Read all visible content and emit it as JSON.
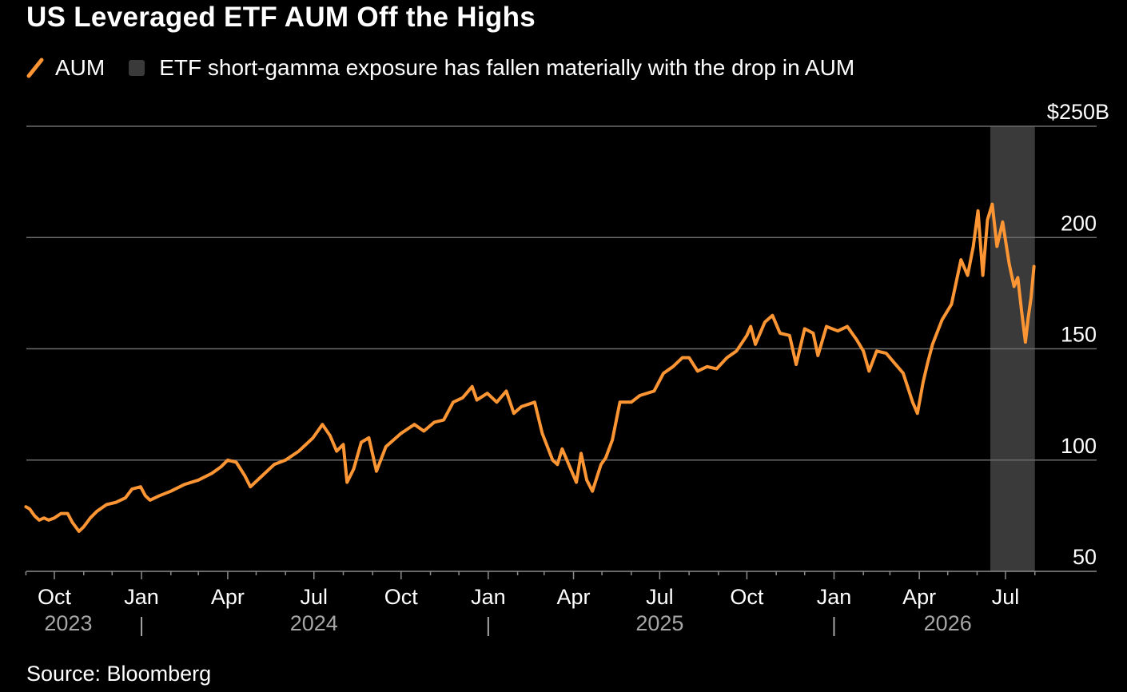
{
  "title": "US Leveraged ETF AUM Off the Highs",
  "source": "Source: Bloomberg",
  "colors": {
    "background": "#000000",
    "line": "#fc9533",
    "shade": "#3a3a3a",
    "grid": "#6b6b6b",
    "axis_text": "#ffffff",
    "year_text": "#a6a6a6"
  },
  "legend": [
    {
      "label": "AUM",
      "swatch": "line"
    },
    {
      "label": "ETF short-gamma exposure has fallen materially with the drop in AUM",
      "swatch": "box"
    }
  ],
  "chart_data": {
    "type": "line",
    "x_axis": {
      "month_ticks": [
        {
          "date": "2023-10-01",
          "label": "Oct"
        },
        {
          "date": "2024-01-01",
          "label": "Jan"
        },
        {
          "date": "2024-04-01",
          "label": "Apr"
        },
        {
          "date": "2024-07-01",
          "label": "Jul"
        },
        {
          "date": "2024-10-01",
          "label": "Oct"
        },
        {
          "date": "2025-01-01",
          "label": "Jan"
        },
        {
          "date": "2025-04-01",
          "label": "Apr"
        },
        {
          "date": "2025-07-01",
          "label": "Jul"
        },
        {
          "date": "2025-10-01",
          "label": "Oct"
        },
        {
          "date": "2026-01-01",
          "label": "Jan"
        },
        {
          "date": "2026-04-01",
          "label": "Apr"
        },
        {
          "date": "2026-07-01",
          "label": "Jul"
        }
      ],
      "year_labels": [
        {
          "date": "2023-09-01",
          "label": "2023"
        },
        {
          "date": "2024-07-01",
          "label": "2024"
        },
        {
          "date": "2025-07-01",
          "label": "2025"
        },
        {
          "date": "2026-05-01",
          "label": "2026"
        }
      ],
      "year_separators": [
        "2024-01-01",
        "2025-01-01",
        "2026-01-01"
      ],
      "range": [
        "2023-08-22",
        "2026-08-31"
      ]
    },
    "y_axis": {
      "ticks": [
        {
          "value": 50,
          "label": "50"
        },
        {
          "value": 100,
          "label": "100"
        },
        {
          "value": 150,
          "label": "150"
        },
        {
          "value": 200,
          "label": "200"
        },
        {
          "value": 250,
          "label": "$250B"
        }
      ],
      "range": [
        50,
        250
      ],
      "position": "right"
    },
    "shaded_region": {
      "start": "2026-06-15",
      "end": "2026-08-01"
    },
    "series": [
      {
        "name": "AUM",
        "points": [
          [
            "2023-09-01",
            79
          ],
          [
            "2023-09-05",
            78
          ],
          [
            "2023-09-10",
            75
          ],
          [
            "2023-09-15",
            73
          ],
          [
            "2023-09-20",
            74
          ],
          [
            "2023-09-25",
            73
          ],
          [
            "2023-10-01",
            74
          ],
          [
            "2023-10-08",
            76
          ],
          [
            "2023-10-15",
            76
          ],
          [
            "2023-10-20",
            72
          ],
          [
            "2023-10-27",
            68
          ],
          [
            "2023-11-01",
            70
          ],
          [
            "2023-11-08",
            74
          ],
          [
            "2023-11-15",
            77
          ],
          [
            "2023-11-25",
            80
          ],
          [
            "2023-12-05",
            81
          ],
          [
            "2023-12-15",
            83
          ],
          [
            "2023-12-22",
            87
          ],
          [
            "2023-12-31",
            88
          ],
          [
            "2024-01-05",
            84
          ],
          [
            "2024-01-10",
            82
          ],
          [
            "2024-01-20",
            84
          ],
          [
            "2024-02-01",
            86
          ],
          [
            "2024-02-15",
            89
          ],
          [
            "2024-03-01",
            91
          ],
          [
            "2024-03-15",
            94
          ],
          [
            "2024-03-25",
            97
          ],
          [
            "2024-04-01",
            100
          ],
          [
            "2024-04-10",
            99
          ],
          [
            "2024-04-19",
            93
          ],
          [
            "2024-04-25",
            88
          ],
          [
            "2024-05-05",
            92
          ],
          [
            "2024-05-20",
            98
          ],
          [
            "2024-06-01",
            100
          ],
          [
            "2024-06-15",
            104
          ],
          [
            "2024-06-30",
            110
          ],
          [
            "2024-07-10",
            116
          ],
          [
            "2024-07-18",
            111
          ],
          [
            "2024-07-25",
            104
          ],
          [
            "2024-08-01",
            107
          ],
          [
            "2024-08-05",
            90
          ],
          [
            "2024-08-12",
            96
          ],
          [
            "2024-08-20",
            108
          ],
          [
            "2024-08-28",
            110
          ],
          [
            "2024-09-05",
            95
          ],
          [
            "2024-09-15",
            106
          ],
          [
            "2024-10-01",
            112
          ],
          [
            "2024-10-15",
            116
          ],
          [
            "2024-10-25",
            113
          ],
          [
            "2024-11-05",
            117
          ],
          [
            "2024-11-15",
            118
          ],
          [
            "2024-11-25",
            126
          ],
          [
            "2024-12-05",
            128
          ],
          [
            "2024-12-15",
            133
          ],
          [
            "2024-12-20",
            127
          ],
          [
            "2024-12-31",
            130
          ],
          [
            "2025-01-10",
            126
          ],
          [
            "2025-01-20",
            131
          ],
          [
            "2025-01-28",
            121
          ],
          [
            "2025-02-05",
            124
          ],
          [
            "2025-02-19",
            126
          ],
          [
            "2025-02-27",
            112
          ],
          [
            "2025-03-10",
            100
          ],
          [
            "2025-03-15",
            98
          ],
          [
            "2025-03-20",
            105
          ],
          [
            "2025-03-27",
            98
          ],
          [
            "2025-04-04",
            90
          ],
          [
            "2025-04-09",
            103
          ],
          [
            "2025-04-15",
            91
          ],
          [
            "2025-04-21",
            86
          ],
          [
            "2025-04-30",
            98
          ],
          [
            "2025-05-05",
            101
          ],
          [
            "2025-05-12",
            109
          ],
          [
            "2025-05-20",
            126
          ],
          [
            "2025-06-01",
            126
          ],
          [
            "2025-06-10",
            129
          ],
          [
            "2025-06-25",
            131
          ],
          [
            "2025-07-05",
            139
          ],
          [
            "2025-07-15",
            142
          ],
          [
            "2025-07-25",
            146
          ],
          [
            "2025-08-01",
            146
          ],
          [
            "2025-08-10",
            140
          ],
          [
            "2025-08-20",
            142
          ],
          [
            "2025-08-30",
            141
          ],
          [
            "2025-09-10",
            146
          ],
          [
            "2025-09-20",
            149
          ],
          [
            "2025-10-01",
            156
          ],
          [
            "2025-10-05",
            160
          ],
          [
            "2025-10-10",
            152
          ],
          [
            "2025-10-20",
            162
          ],
          [
            "2025-10-28",
            165
          ],
          [
            "2025-11-05",
            157
          ],
          [
            "2025-11-15",
            156
          ],
          [
            "2025-11-22",
            143
          ],
          [
            "2025-12-01",
            159
          ],
          [
            "2025-12-10",
            157
          ],
          [
            "2025-12-15",
            147
          ],
          [
            "2025-12-24",
            160
          ],
          [
            "2026-01-05",
            158
          ],
          [
            "2026-01-15",
            160
          ],
          [
            "2026-01-25",
            154
          ],
          [
            "2026-02-01",
            149
          ],
          [
            "2026-02-07",
            140
          ],
          [
            "2026-02-15",
            149
          ],
          [
            "2026-02-25",
            148
          ],
          [
            "2026-03-05",
            144
          ],
          [
            "2026-03-15",
            139
          ],
          [
            "2026-03-25",
            126
          ],
          [
            "2026-03-30",
            121
          ],
          [
            "2026-04-05",
            135
          ],
          [
            "2026-04-10",
            144
          ],
          [
            "2026-04-15",
            152
          ],
          [
            "2026-04-25",
            163
          ],
          [
            "2026-05-05",
            170
          ],
          [
            "2026-05-15",
            190
          ],
          [
            "2026-05-22",
            183
          ],
          [
            "2026-05-28",
            196
          ],
          [
            "2026-06-02",
            212
          ],
          [
            "2026-06-07",
            183
          ],
          [
            "2026-06-12",
            208
          ],
          [
            "2026-06-17",
            215
          ],
          [
            "2026-06-22",
            196
          ],
          [
            "2026-06-28",
            207
          ],
          [
            "2026-07-05",
            188
          ],
          [
            "2026-07-10",
            178
          ],
          [
            "2026-07-14",
            182
          ],
          [
            "2026-07-18",
            167
          ],
          [
            "2026-07-22",
            153
          ],
          [
            "2026-07-25",
            164
          ],
          [
            "2026-07-28",
            173
          ],
          [
            "2026-07-31",
            187
          ]
        ]
      }
    ],
    "grid": "horizontal",
    "legend_position": "top-left"
  }
}
